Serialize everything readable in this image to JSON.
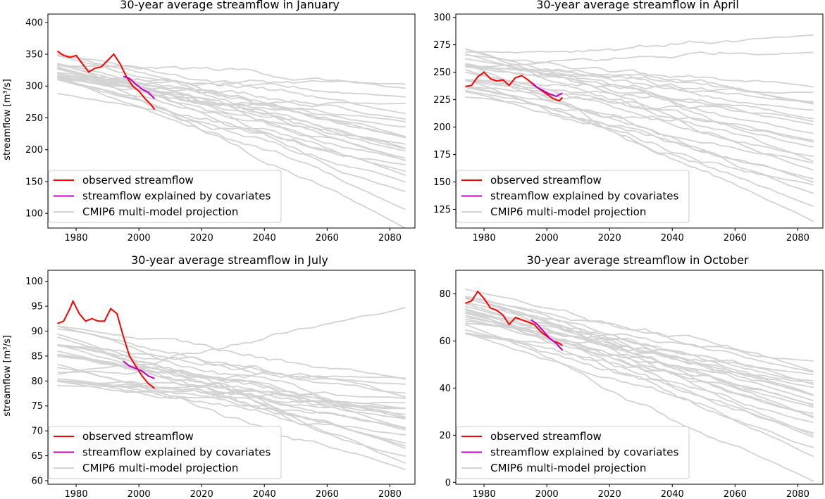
{
  "figure": {
    "ylabel": "streamflow  [m³/s]",
    "legend": {
      "observed": "observed streamflow",
      "explained": "streamflow explained by covariates",
      "cmip6": "CMIP6 multi-model projection"
    },
    "colors": {
      "observed": "#ff0000",
      "explained": "#bf00bf",
      "cmip6": "#d3d3d3"
    }
  },
  "chart_data": [
    {
      "type": "line",
      "title": "30-year average streamflow in January",
      "xlabel": "",
      "ylabel": "streamflow  [m³/s]",
      "xlim": [
        1971,
        2088
      ],
      "ylim": [
        77,
        413
      ],
      "xticks": [
        1980,
        2000,
        2020,
        2040,
        2060,
        2080
      ],
      "yticks": [
        100,
        150,
        200,
        250,
        300,
        350,
        400
      ],
      "legend_position": "lower-left",
      "observed": {
        "x": [
          1974,
          1976,
          1978,
          1980,
          1982,
          1984,
          1986,
          1988,
          1990,
          1992,
          1994,
          1996,
          1998,
          2000,
          2002,
          2004,
          2005
        ],
        "y": [
          355,
          348,
          345,
          348,
          335,
          322,
          328,
          330,
          340,
          350,
          335,
          315,
          300,
          292,
          280,
          270,
          263
        ]
      },
      "explained": {
        "x": [
          1995,
          1997,
          1999,
          2001,
          2003,
          2005
        ],
        "y": [
          315,
          312,
          303,
          295,
          290,
          280
        ]
      },
      "projection": {
        "x_start": 1974,
        "x_end": 2085,
        "start_center": 320,
        "start_spread": 35,
        "end_values": [
          75,
          110,
          135,
          145,
          160,
          170,
          175,
          180,
          185,
          190,
          195,
          200,
          205,
          210,
          215,
          220,
          225,
          235,
          240,
          250,
          260,
          270,
          280,
          300,
          305
        ]
      }
    },
    {
      "type": "line",
      "title": "30-year average streamflow in April",
      "xlabel": "",
      "ylabel": "",
      "xlim": [
        1971,
        2088
      ],
      "ylim": [
        108,
        303
      ],
      "xticks": [
        1980,
        2000,
        2020,
        2040,
        2060,
        2080
      ],
      "yticks": [
        125,
        150,
        175,
        200,
        225,
        250,
        275,
        300
      ],
      "legend_position": "lower-left",
      "observed": {
        "x": [
          1974,
          1976,
          1978,
          1980,
          1982,
          1984,
          1986,
          1988,
          1990,
          1992,
          1994,
          1996,
          1998,
          2000,
          2002,
          2004,
          2005
        ],
        "y": [
          237,
          238,
          246,
          250,
          244,
          242,
          243,
          238,
          245,
          247,
          243,
          238,
          234,
          230,
          226,
          224,
          227
        ]
      },
      "explained": {
        "x": [
          1995,
          1997,
          1999,
          2001,
          2003,
          2005
        ],
        "y": [
          241,
          236,
          233,
          230,
          228,
          231
        ]
      },
      "projection": {
        "x_start": 1974,
        "x_end": 2085,
        "start_center": 248,
        "start_spread": 24,
        "end_values": [
          113,
          130,
          140,
          145,
          150,
          155,
          160,
          165,
          170,
          175,
          180,
          185,
          190,
          195,
          200,
          205,
          210,
          215,
          220,
          222,
          225,
          230,
          235,
          270,
          285
        ]
      }
    },
    {
      "type": "line",
      "title": "30-year average streamflow in July",
      "xlabel": "",
      "ylabel": "streamflow  [m³/s]",
      "xlim": [
        1971,
        2088
      ],
      "ylim": [
        59.3,
        102.2
      ],
      "xticks": [
        1980,
        2000,
        2020,
        2040,
        2060,
        2080
      ],
      "yticks": [
        60,
        65,
        70,
        75,
        80,
        85,
        90,
        95,
        100
      ],
      "legend_position": "lower-left",
      "observed": {
        "x": [
          1974,
          1976,
          1978,
          1979,
          1981,
          1983,
          1985,
          1987,
          1989,
          1991,
          1993,
          1995,
          1997,
          1999,
          2001,
          2003,
          2005
        ],
        "y": [
          91.5,
          92,
          94.5,
          96,
          93.5,
          92,
          92.5,
          92,
          92,
          94.5,
          93.5,
          89,
          85,
          83,
          81,
          79.5,
          78.5
        ]
      },
      "explained": {
        "x": [
          1995,
          1997,
          1999,
          2001,
          2003,
          2005
        ],
        "y": [
          84,
          83,
          82.5,
          82,
          81,
          80.5
        ]
      },
      "projection": {
        "x_start": 1974,
        "x_end": 2085,
        "start_center": 85,
        "start_spread": 6,
        "end_values": [
          62,
          64,
          65,
          66,
          67,
          68,
          69,
          70,
          70.5,
          71,
          72,
          72.5,
          73,
          73.5,
          74,
          74.5,
          75,
          75.5,
          76,
          77,
          78,
          79,
          80,
          81,
          95
        ]
      }
    },
    {
      "type": "line",
      "title": "30-year average streamflow in October",
      "xlabel": "",
      "ylabel": "",
      "xlim": [
        1971,
        2088
      ],
      "ylim": [
        -0.8,
        90
      ],
      "xticks": [
        1980,
        2000,
        2020,
        2040,
        2060,
        2080
      ],
      "yticks": [
        0,
        20,
        40,
        60,
        80
      ],
      "legend_position": "lower-left",
      "observed": {
        "x": [
          1974,
          1976,
          1978,
          1980,
          1982,
          1984,
          1986,
          1988,
          1990,
          1992,
          1994,
          1996,
          1998,
          2000,
          2002,
          2004,
          2005
        ],
        "y": [
          76,
          77,
          81,
          78,
          74,
          73,
          71,
          67,
          70,
          69,
          68,
          67,
          64,
          62,
          60,
          59,
          58
        ]
      },
      "explained": {
        "x": [
          1995,
          1997,
          1999,
          2001,
          2003,
          2005
        ],
        "y": [
          69,
          67,
          64,
          61,
          59,
          56
        ]
      },
      "projection": {
        "x_start": 1974,
        "x_end": 2085,
        "start_center": 72,
        "start_spread": 11,
        "end_values": [
          0,
          12,
          15,
          18,
          20,
          22,
          25,
          27,
          28,
          30,
          31,
          32,
          34,
          35,
          36,
          37,
          38,
          40,
          41,
          42,
          44,
          45,
          46,
          48,
          52
        ]
      }
    }
  ]
}
